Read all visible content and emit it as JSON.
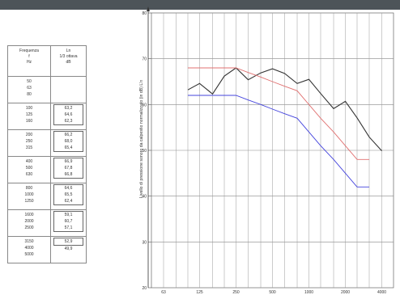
{
  "table": {
    "header_col1": [
      "Frequenza",
      "f",
      "Hz"
    ],
    "header_col2": [
      "Ln",
      "1/3 ottava",
      "dB"
    ],
    "groups": [
      {
        "freqs": [
          "50",
          "63",
          "80"
        ],
        "values": []
      },
      {
        "freqs": [
          "100",
          "125",
          "160"
        ],
        "values": [
          "63,2",
          "64,6",
          "62,3"
        ]
      },
      {
        "freqs": [
          "200",
          "250",
          "315"
        ],
        "values": [
          "66,2",
          "68,0",
          "65,4"
        ]
      },
      {
        "freqs": [
          "400",
          "500",
          "630"
        ],
        "values": [
          "66,9",
          "67,8",
          "66,8"
        ]
      },
      {
        "freqs": [
          "800",
          "1000",
          "1250"
        ],
        "values": [
          "64,6",
          "65,5",
          "62,4"
        ]
      },
      {
        "freqs": [
          "1600",
          "2000",
          "2500"
        ],
        "values": [
          "59,1",
          "60,7",
          "57,1"
        ]
      },
      {
        "freqs": [
          "3150",
          "4000",
          "5000"
        ],
        "values": [
          "52,9",
          "49,9"
        ]
      }
    ]
  },
  "chart_data": {
    "type": "line",
    "ylabel": "Livello di pressione sonoro da calpestio normalizzato (in dB) L'n",
    "yticks": [
      "20",
      "30",
      "40",
      "50",
      "60",
      "70",
      "80"
    ],
    "xticks": [
      "63",
      "125",
      "250",
      "500",
      "1000",
      "2000",
      "4000"
    ],
    "ylim": [
      20,
      80
    ],
    "grid": true,
    "x": [
      100,
      125,
      160,
      200,
      250,
      315,
      400,
      500,
      630,
      800,
      1000,
      1250,
      1600,
      2000,
      2500,
      3150
    ],
    "series": [
      {
        "color": "#333333",
        "values": [
          63.2,
          64.6,
          62.3,
          66.2,
          68.0,
          65.4,
          66.9,
          67.8,
          66.8,
          64.6,
          65.5,
          62.4,
          59.1,
          60.7,
          57.1,
          52.9
        ]
      },
      {
        "color": "#e07070",
        "values": [
          68,
          68,
          68,
          68,
          68,
          67,
          66,
          65,
          64,
          63,
          60,
          57,
          54,
          51,
          48,
          48
        ]
      },
      {
        "color": "#4444dd",
        "values": [
          62,
          62,
          62,
          62,
          62,
          61,
          60,
          59,
          58,
          57,
          54,
          51,
          48,
          45,
          42,
          42
        ]
      }
    ],
    "extra_point": {
      "x": 4000,
      "value": 49.9
    }
  }
}
